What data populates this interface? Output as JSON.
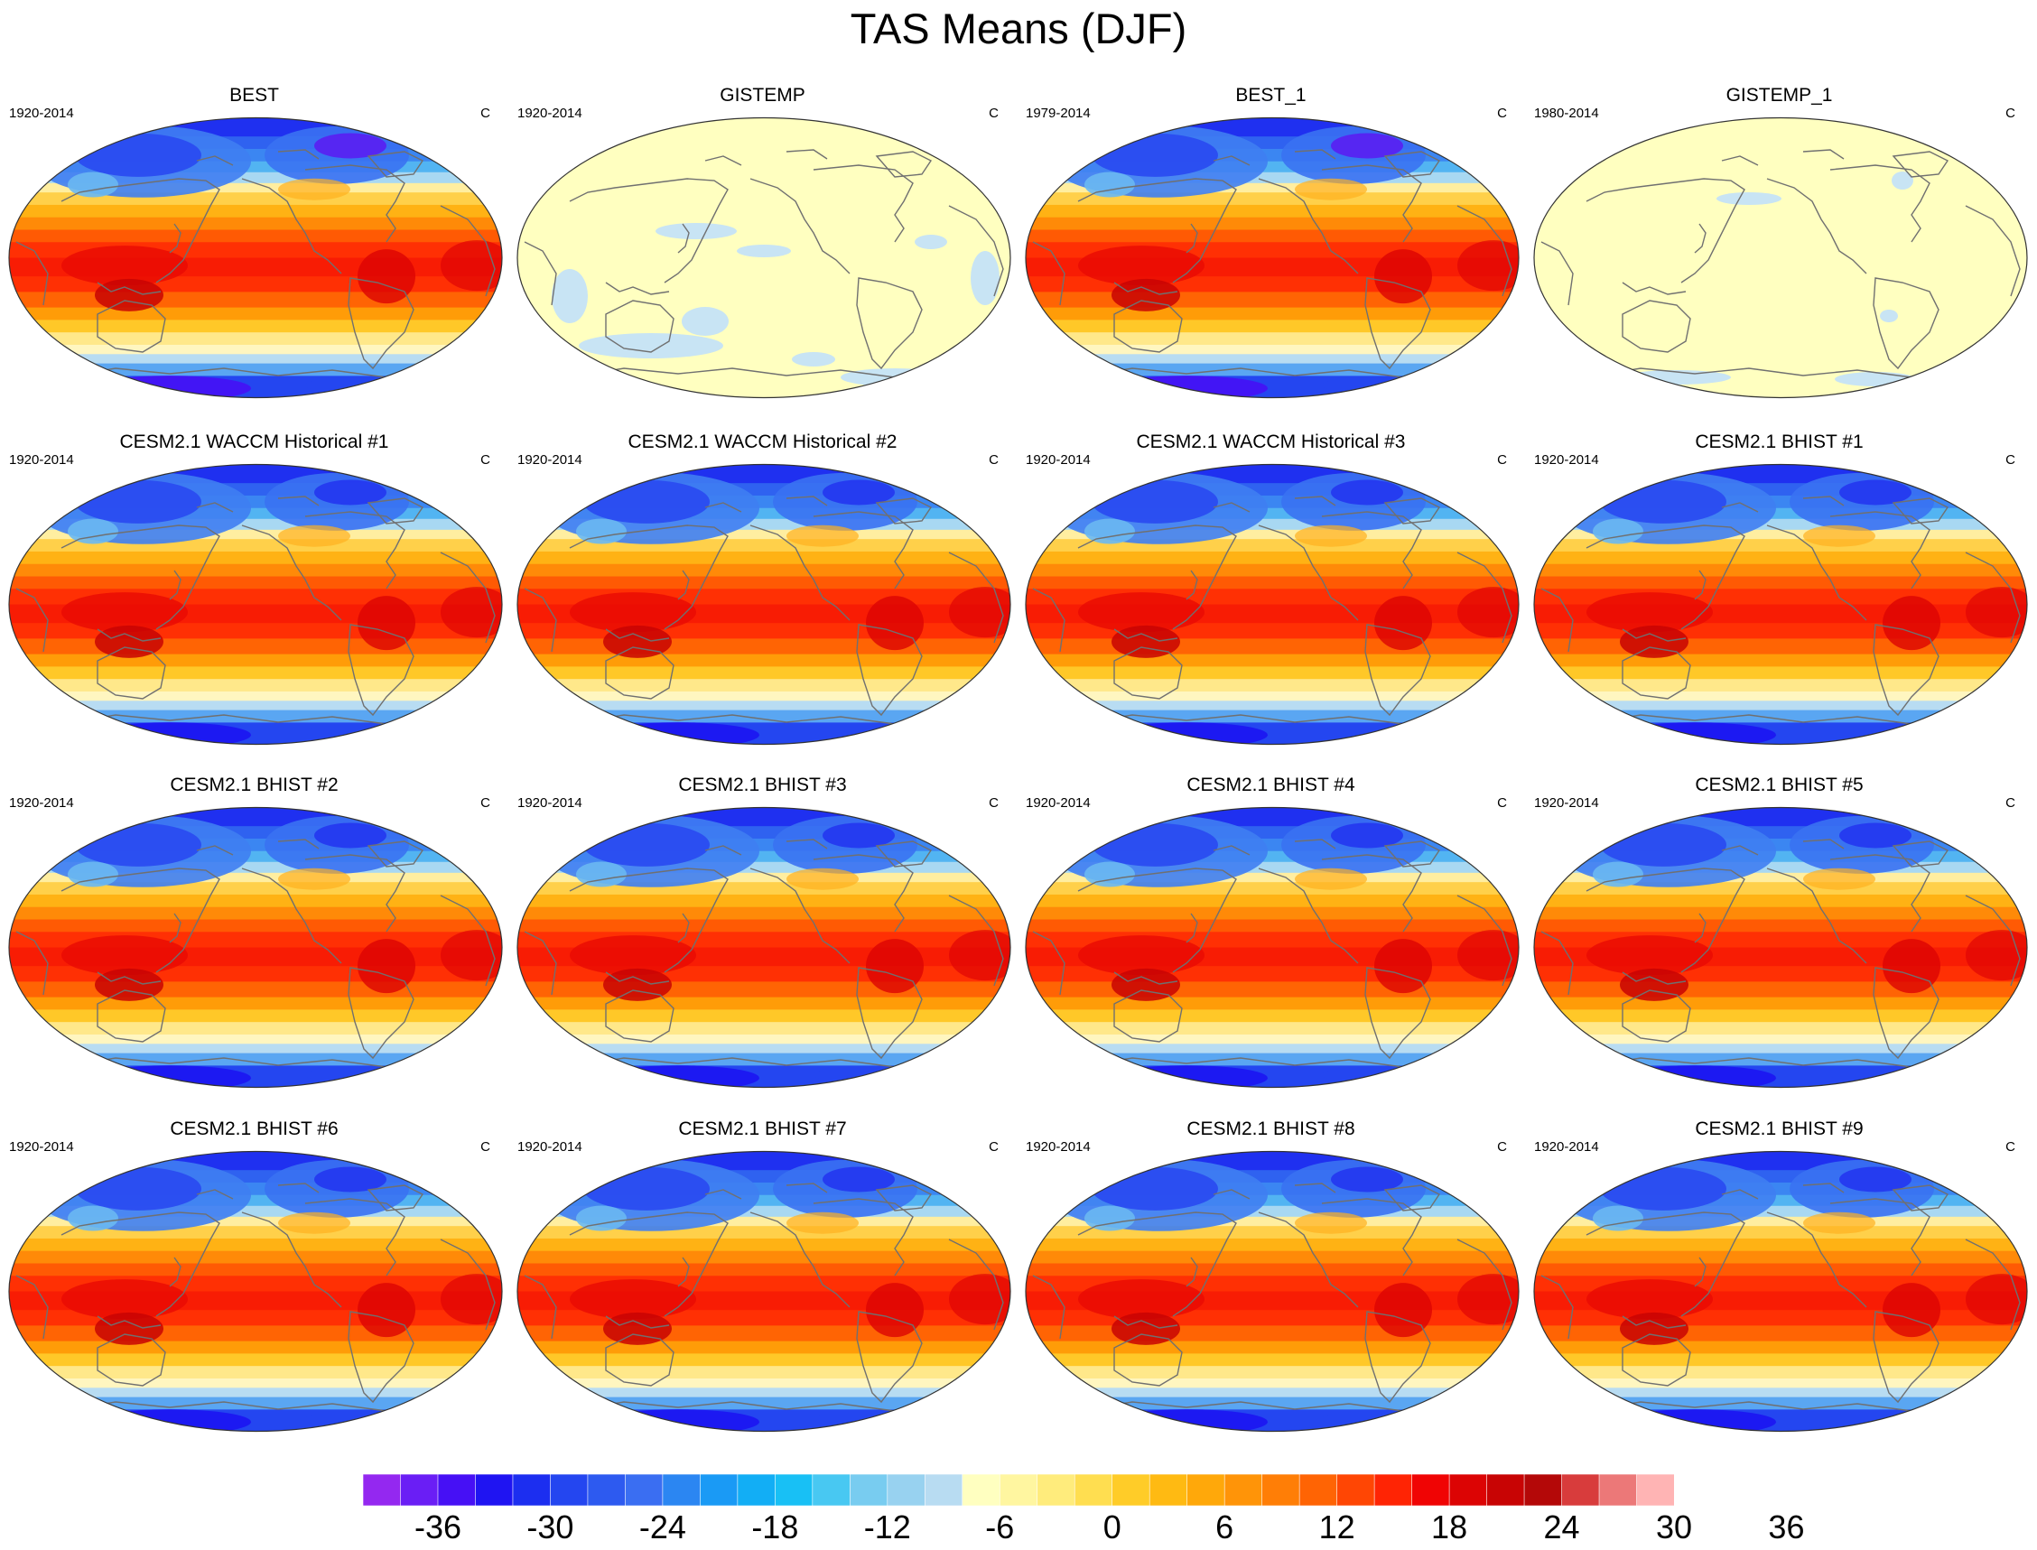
{
  "title": "TAS Means (DJF)",
  "units": "C",
  "panels": [
    {
      "title": "BEST",
      "period": "1920-2014",
      "style": "observed"
    },
    {
      "title": "GISTEMP",
      "period": "1920-2014",
      "style": "anomaly"
    },
    {
      "title": "BEST_1",
      "period": "1979-2014",
      "style": "observed"
    },
    {
      "title": "GISTEMP_1",
      "period": "1980-2014",
      "style": "anomaly"
    },
    {
      "title": "CESM2.1 WACCM Historical #1",
      "period": "1920-2014",
      "style": "model"
    },
    {
      "title": "CESM2.1 WACCM Historical #2",
      "period": "1920-2014",
      "style": "model"
    },
    {
      "title": "CESM2.1 WACCM Historical #3",
      "period": "1920-2014",
      "style": "model"
    },
    {
      "title": "CESM2.1 BHIST #1",
      "period": "1920-2014",
      "style": "model"
    },
    {
      "title": "CESM2.1 BHIST #2",
      "period": "1920-2014",
      "style": "model"
    },
    {
      "title": "CESM2.1 BHIST #3",
      "period": "1920-2014",
      "style": "model"
    },
    {
      "title": "CESM2.1 BHIST #4",
      "period": "1920-2014",
      "style": "model"
    },
    {
      "title": "CESM2.1 BHIST #5",
      "period": "1920-2014",
      "style": "model"
    },
    {
      "title": "CESM2.1 BHIST #6",
      "period": "1920-2014",
      "style": "model"
    },
    {
      "title": "CESM2.1 BHIST #7",
      "period": "1920-2014",
      "style": "model"
    },
    {
      "title": "CESM2.1 BHIST #8",
      "period": "1920-2014",
      "style": "model"
    },
    {
      "title": "CESM2.1 BHIST #9",
      "period": "1920-2014",
      "style": "model"
    }
  ],
  "colorbar": {
    "colors": [
      "#9428f0",
      "#6a1ef5",
      "#4610f5",
      "#1f14f2",
      "#1c2ef0",
      "#2446f0",
      "#2d5af0",
      "#3a6ef2",
      "#2b86f2",
      "#1a9af5",
      "#12aef5",
      "#18c0f5",
      "#48c8f2",
      "#78ccf0",
      "#98d2f0",
      "#b8dcf2",
      "#ffffc0",
      "#fff6a0",
      "#ffec7c",
      "#ffde50",
      "#ffcc28",
      "#ffba12",
      "#ffa80a",
      "#ff9408",
      "#ff7e06",
      "#ff6404",
      "#ff4604",
      "#ff2404",
      "#f00404",
      "#dc0404",
      "#c80404",
      "#b40808",
      "#d83c3c",
      "#ec7878",
      "#ffb4b4"
    ],
    "tick_labels": [
      "-36",
      "-30",
      "-24",
      "-18",
      "-12",
      "-6",
      "0",
      "6",
      "12",
      "18",
      "24",
      "30",
      "36"
    ],
    "tick_values": [
      -36,
      -30,
      -24,
      -18,
      -12,
      -6,
      0,
      6,
      12,
      18,
      24,
      30,
      36
    ],
    "first_boundary": -40,
    "step": 2
  }
}
